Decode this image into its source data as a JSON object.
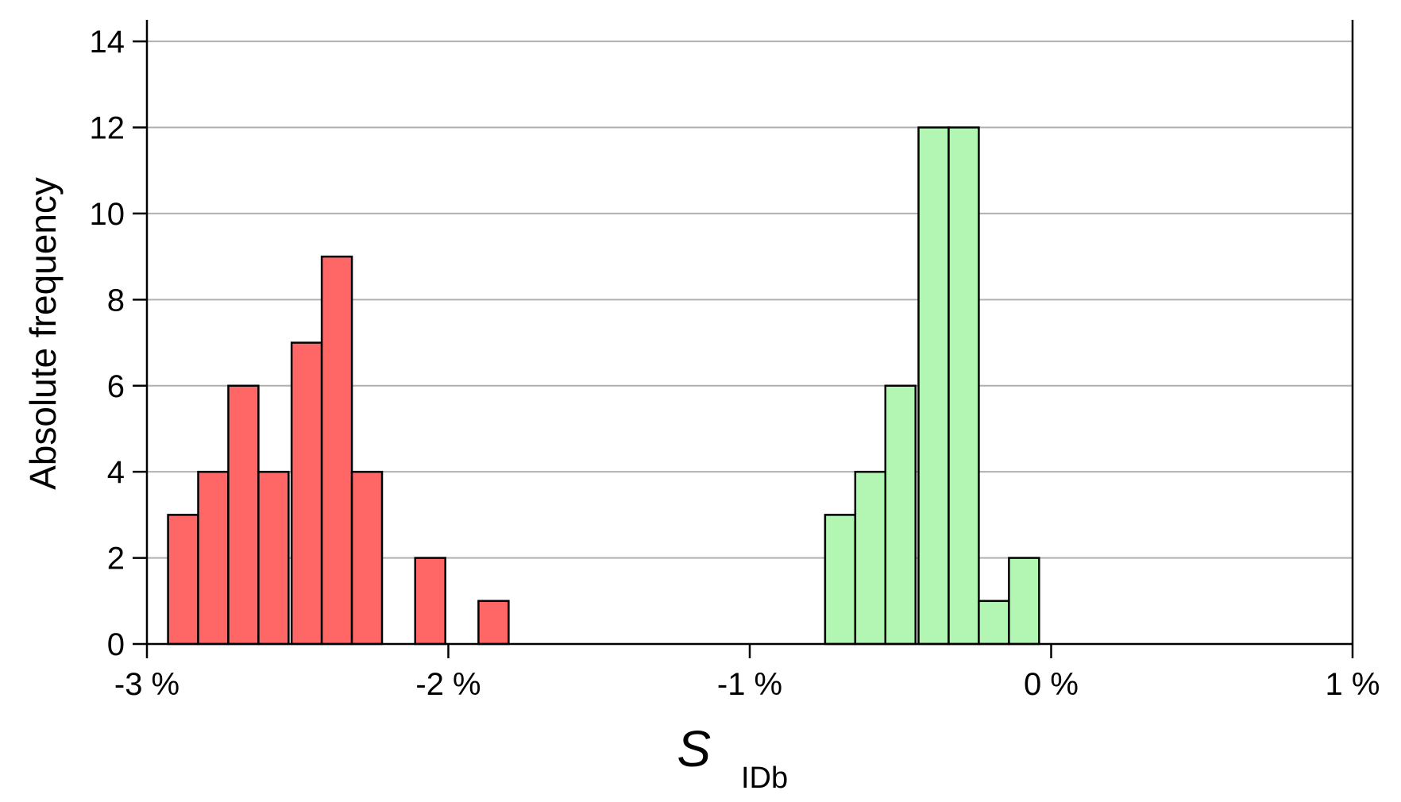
{
  "chart_data": {
    "type": "bar",
    "title": "",
    "xlabel": "S",
    "xlabel_subscript": "IDb",
    "ylabel": "Absolute frequency",
    "xlim": [
      -3,
      1
    ],
    "ylim": [
      0,
      14.5
    ],
    "bin_width": 0.1,
    "grid": true,
    "x_ticks": [
      {
        "value": -3,
        "label": "-3 %"
      },
      {
        "value": -2,
        "label": "-2 %"
      },
      {
        "value": -1,
        "label": "-1 %"
      },
      {
        "value": 0,
        "label": "0 %"
      },
      {
        "value": 1,
        "label": "1 %"
      }
    ],
    "y_ticks": [
      {
        "value": 0,
        "label": "0"
      },
      {
        "value": 2,
        "label": "2"
      },
      {
        "value": 4,
        "label": "4"
      },
      {
        "value": 6,
        "label": "6"
      },
      {
        "value": 8,
        "label": "8"
      },
      {
        "value": 10,
        "label": "10"
      },
      {
        "value": 12,
        "label": "12"
      },
      {
        "value": 14,
        "label": "14"
      }
    ],
    "series": [
      {
        "color": "#ff6666",
        "bins": [
          {
            "start": -2.93,
            "count": 3
          },
          {
            "start": -2.83,
            "count": 4
          },
          {
            "start": -2.73,
            "count": 6
          },
          {
            "start": -2.63,
            "count": 4
          },
          {
            "start": -2.52,
            "count": 7
          },
          {
            "start": -2.42,
            "count": 9
          },
          {
            "start": -2.32,
            "count": 4
          },
          {
            "start": -2.11,
            "count": 2
          },
          {
            "start": -1.9,
            "count": 1
          }
        ]
      },
      {
        "color": "#b3f5b3",
        "bins": [
          {
            "start": -0.75,
            "count": 3
          },
          {
            "start": -0.65,
            "count": 4
          },
          {
            "start": -0.55,
            "count": 6
          },
          {
            "start": -0.44,
            "count": 12
          },
          {
            "start": -0.34,
            "count": 12
          },
          {
            "start": -0.24,
            "count": 1
          },
          {
            "start": -0.14,
            "count": 2
          }
        ]
      }
    ]
  }
}
